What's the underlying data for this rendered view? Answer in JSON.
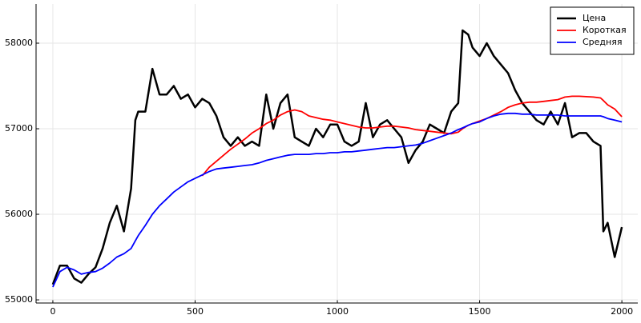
{
  "chart_data": {
    "type": "line",
    "x": [
      0,
      25,
      50,
      75,
      100,
      125,
      150,
      175,
      200,
      225,
      250,
      275,
      290,
      300,
      325,
      350,
      375,
      400,
      425,
      450,
      475,
      500,
      525,
      550,
      575,
      600,
      625,
      650,
      675,
      700,
      725,
      750,
      775,
      800,
      825,
      850,
      875,
      900,
      925,
      950,
      975,
      1000,
      1025,
      1050,
      1075,
      1100,
      1125,
      1150,
      1175,
      1200,
      1225,
      1250,
      1275,
      1300,
      1325,
      1350,
      1375,
      1400,
      1425,
      1440,
      1460,
      1475,
      1500,
      1525,
      1550,
      1575,
      1600,
      1625,
      1650,
      1675,
      1700,
      1725,
      1750,
      1775,
      1800,
      1825,
      1850,
      1875,
      1900,
      1925,
      1935,
      1950,
      1975,
      2000
    ],
    "series": [
      {
        "name": "Цена",
        "color": "#000000",
        "width": 2.5,
        "values": [
          55180,
          55400,
          55400,
          55250,
          55200,
          55300,
          55380,
          55600,
          55900,
          56100,
          55800,
          56300,
          57100,
          57200,
          57200,
          57700,
          57400,
          57400,
          57500,
          57350,
          57400,
          57250,
          57350,
          57300,
          57150,
          56900,
          56800,
          56900,
          56800,
          56850,
          56800,
          57400,
          57000,
          57300,
          57400,
          56900,
          56850,
          56800,
          57000,
          56900,
          57050,
          57050,
          56850,
          56800,
          56850,
          57300,
          56900,
          57050,
          57100,
          57000,
          56900,
          56600,
          56750,
          56850,
          57050,
          57000,
          56950,
          57200,
          57300,
          58150,
          58100,
          57950,
          57850,
          58000,
          57850,
          57750,
          57650,
          57450,
          57300,
          57200,
          57100,
          57050,
          57200,
          57050,
          57300,
          56900,
          56950,
          56950,
          56850,
          56800,
          55800,
          55900,
          55500,
          55850
        ]
      },
      {
        "name": "Короткая",
        "color": "#ff0000",
        "width": 1.8,
        "values": [
          null,
          null,
          null,
          null,
          null,
          null,
          null,
          null,
          null,
          null,
          null,
          null,
          null,
          null,
          null,
          null,
          null,
          null,
          null,
          null,
          null,
          null,
          56450,
          56550,
          56620,
          56690,
          56760,
          56820,
          56880,
          56950,
          57000,
          57060,
          57100,
          57160,
          57200,
          57220,
          57200,
          57150,
          57130,
          57110,
          57100,
          57080,
          57060,
          57040,
          57020,
          57010,
          57010,
          57020,
          57030,
          57030,
          57020,
          57010,
          56990,
          56980,
          56970,
          56960,
          56950,
          56940,
          56960,
          57000,
          57040,
          57060,
          57090,
          57120,
          57160,
          57200,
          57250,
          57280,
          57300,
          57310,
          57310,
          57320,
          57330,
          57340,
          57370,
          57380,
          57380,
          57375,
          57370,
          57360,
          57330,
          57280,
          57230,
          57140
        ]
      },
      {
        "name": "Средняя",
        "color": "#0000ff",
        "width": 1.8,
        "values": [
          55150,
          55330,
          55380,
          55350,
          55300,
          55320,
          55330,
          55370,
          55430,
          55500,
          55540,
          55600,
          55690,
          55750,
          55870,
          56000,
          56100,
          56180,
          56260,
          56320,
          56380,
          56420,
          56460,
          56500,
          56530,
          56540,
          56550,
          56560,
          56570,
          56580,
          56600,
          56630,
          56650,
          56670,
          56690,
          56700,
          56700,
          56700,
          56710,
          56710,
          56720,
          56720,
          56730,
          56730,
          56740,
          56750,
          56760,
          56770,
          56780,
          56780,
          56790,
          56800,
          56810,
          56830,
          56860,
          56890,
          56920,
          56950,
          56990,
          57010,
          57040,
          57060,
          57080,
          57120,
          57150,
          57170,
          57180,
          57180,
          57170,
          57170,
          57160,
          57160,
          57160,
          57160,
          57150,
          57150,
          57150,
          57150,
          57150,
          57150,
          57140,
          57120,
          57100,
          57080
        ]
      }
    ],
    "xlim": [
      -59,
      2056
    ],
    "ylim": [
      54963,
      58458
    ],
    "xticks": [
      0,
      500,
      1000,
      1500,
      2000
    ],
    "yticks": [
      55000,
      56000,
      57000,
      58000
    ],
    "grid": true,
    "legend": "top-right"
  }
}
